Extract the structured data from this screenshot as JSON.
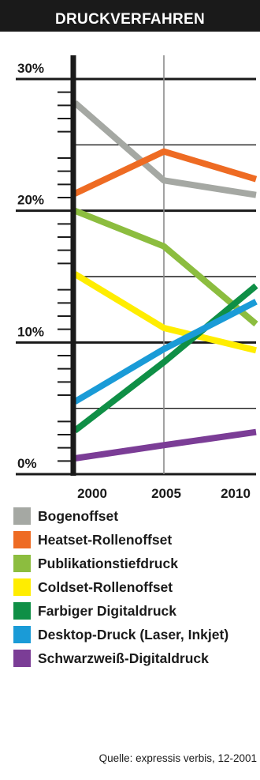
{
  "chart_data": {
    "type": "line",
    "title": "DRUCKVERFAHREN",
    "x": [
      "2000",
      "2005",
      "2010"
    ],
    "ylim": [
      0,
      30
    ],
    "y_ticks": [
      "0%",
      "10%",
      "20%",
      "30%"
    ],
    "grid": true,
    "legend_position": "bottom",
    "series": [
      {
        "name": "Bogenoffset",
        "color": "#a5a8a3",
        "values": [
          28.2,
          22.3,
          21.2
        ]
      },
      {
        "name": "Heatset-Rollenoffset",
        "color": "#ee6b23",
        "values": [
          21.3,
          24.5,
          22.4
        ]
      },
      {
        "name": "Publikationstiefdruck",
        "color": "#8cbd3f",
        "values": [
          20.0,
          17.3,
          11.4
        ]
      },
      {
        "name": "Coldset-Rollenoffset",
        "color": "#ffed00",
        "values": [
          15.2,
          11.1,
          9.4
        ]
      },
      {
        "name": "Farbiger Digitaldruck",
        "color": "#0f8f46",
        "values": [
          3.3,
          8.5,
          14.3
        ]
      },
      {
        "name": "Desktop-Druck (Laser, Inkjet)",
        "color": "#1a9bd7",
        "values": [
          5.5,
          9.5,
          13.1
        ]
      },
      {
        "name": "Schwarzweiß-Digitaldruck",
        "color": "#7b3d96",
        "values": [
          1.2,
          2.2,
          3.2
        ]
      }
    ]
  },
  "source": "Quelle: expressis verbis, 12-2001"
}
